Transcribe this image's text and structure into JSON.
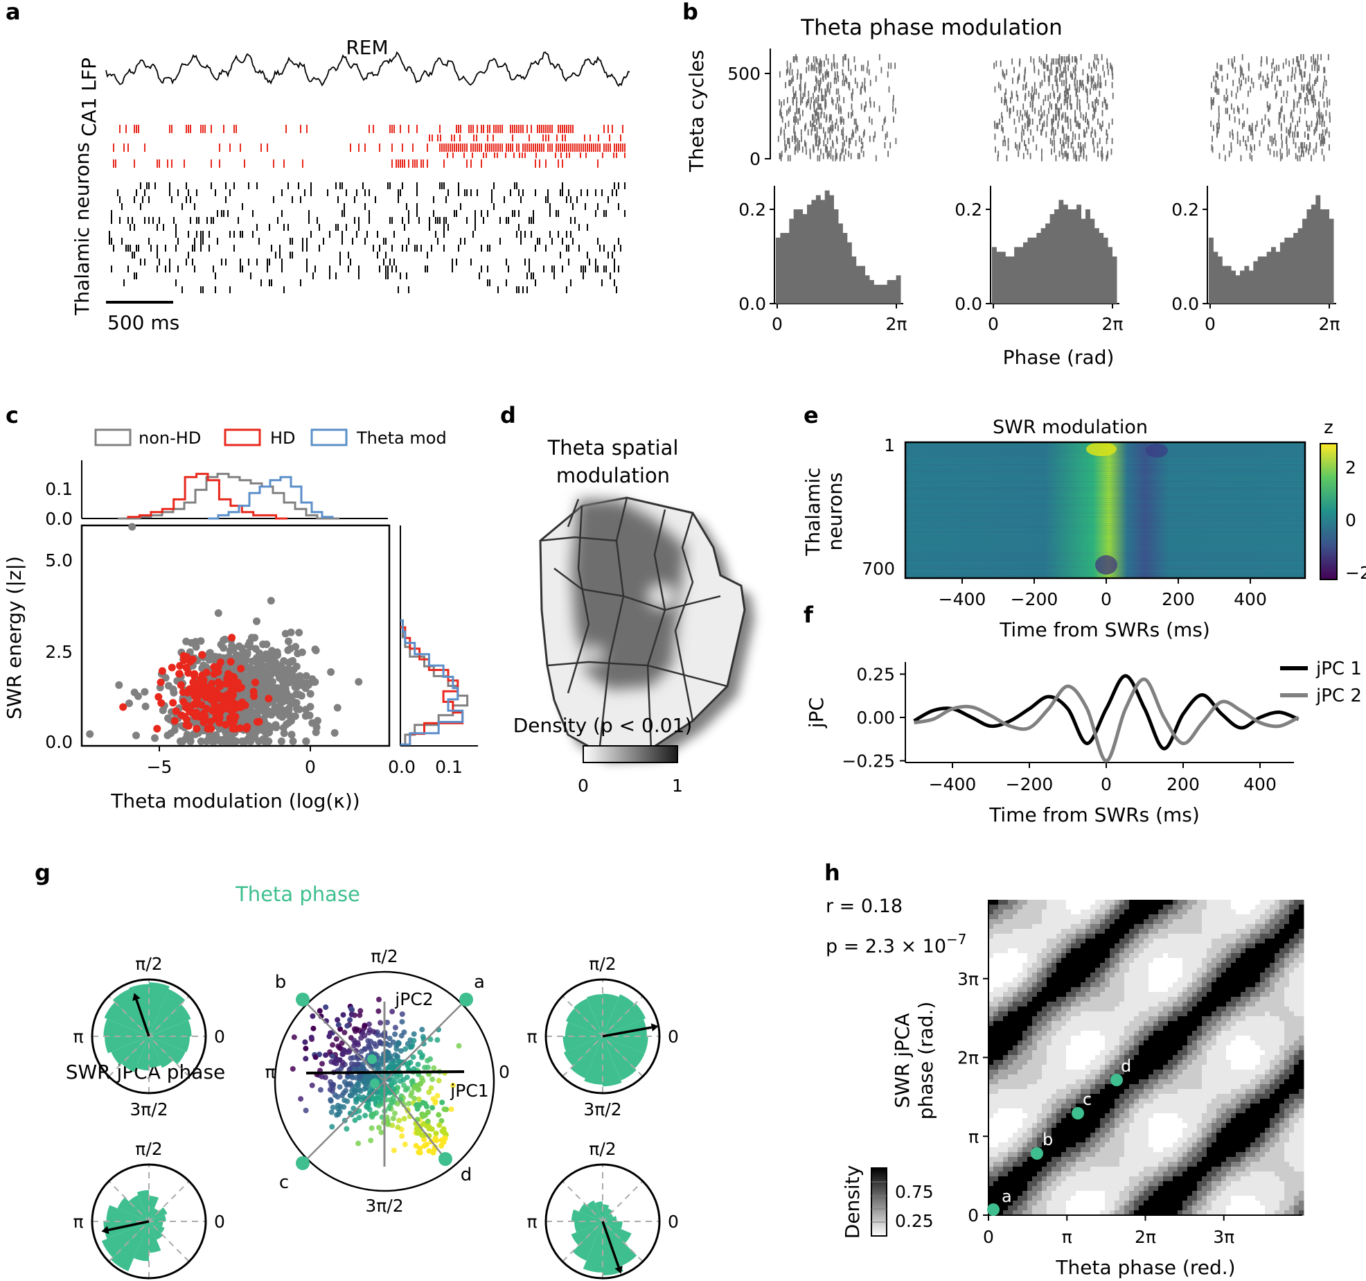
{
  "panel_labels": {
    "a": "a",
    "b": "b",
    "c": "c",
    "d": "d",
    "e": "e",
    "f": "f",
    "g": "g",
    "h": "h"
  },
  "panel_a": {
    "state_label": "REM",
    "lfp_label": "CA1 LFP",
    "neurons_label": "Thalamic neurons",
    "scalebar_label": "500 ms",
    "colors": {
      "lfp": "#000000",
      "hd": "#e8281c",
      "other": "#000000"
    }
  },
  "panel_b": {
    "title": "Theta phase modulation",
    "raster_ylabel": "Theta cycles",
    "raster_yticks": [
      "0",
      "500"
    ],
    "xlabel": "Phase (rad)",
    "xticks": [
      "0",
      "2π"
    ],
    "hist_yticks": [
      "0.0",
      "0.2"
    ],
    "hist_color": "#6e6e6e"
  },
  "panel_c": {
    "legend": [
      "non-HD",
      "HD",
      "Theta mod"
    ],
    "xlabel": "Theta modulation (log(κ))",
    "ylabel": "SWR energy (|z|)",
    "xticks": [
      "−5",
      "0"
    ],
    "yticks": [
      "0.0",
      "2.5",
      "5.0"
    ],
    "top_yticks": [
      "0.0",
      "0.1"
    ],
    "right_xticks": [
      "0.0",
      "0.1"
    ],
    "colors": {
      "nonhd": "#808080",
      "hd": "#e8281c",
      "theta": "#5b8fca"
    }
  },
  "panel_d": {
    "title_line1": "Theta spatial",
    "title_line2": "modulation",
    "colorbar_label": "Density (p < 0.01)",
    "colorbar_ticks": [
      "0",
      "1"
    ]
  },
  "panel_e": {
    "title": "SWR modulation",
    "ylabel_line1": "Thalamic",
    "ylabel_line2": "neurons",
    "yticks": [
      "1",
      "700"
    ],
    "xticks": [
      "−400",
      "−200",
      "0",
      "200",
      "400"
    ],
    "xlabel": "Time from SWRs (ms)",
    "colorbar_label": "z",
    "colorbar_ticks": [
      "2",
      "0",
      "−2"
    ]
  },
  "panel_f": {
    "ylabel": "jPC",
    "yticks": [
      "0.25",
      "0.00",
      "−0.25"
    ],
    "xticks": [
      "−400",
      "−200",
      "0",
      "200",
      "400"
    ],
    "xlabel": "Time from SWRs (ms)",
    "legend": [
      "jPC 1",
      "jPC 2"
    ],
    "colors": {
      "jpc1": "#000000",
      "jpc2": "#808080"
    }
  },
  "chart_data": {
    "type": "line",
    "title": "jPC",
    "x": [
      -500,
      -450,
      -400,
      -350,
      -300,
      -250,
      -200,
      -150,
      -100,
      -50,
      0,
      50,
      100,
      150,
      200,
      250,
      300,
      350,
      400,
      450,
      500
    ],
    "series": [
      {
        "name": "jPC 1",
        "values": [
          -0.02,
          0.04,
          0.05,
          0.0,
          -0.05,
          -0.02,
          0.05,
          0.12,
          0.05,
          -0.15,
          0.05,
          0.24,
          0.05,
          -0.18,
          0.02,
          0.13,
          0.02,
          -0.06,
          0.0,
          0.03,
          -0.01
        ]
      },
      {
        "name": "jPC 2",
        "values": [
          -0.03,
          -0.01,
          0.05,
          0.06,
          0.01,
          -0.05,
          -0.06,
          0.05,
          0.18,
          0.05,
          -0.25,
          0.05,
          0.22,
          0.0,
          -0.15,
          -0.03,
          0.09,
          0.04,
          -0.03,
          -0.05,
          0.0
        ]
      }
    ],
    "xlabel": "Time from SWRs (ms)",
    "ylabel": "jPC",
    "ylim": [
      -0.28,
      0.28
    ]
  },
  "panel_g": {
    "theta_phase_label": "Theta phase",
    "jpca_phase_label": "SWR jPCA phase",
    "angle_labels": {
      "top": "π/2",
      "left": "π",
      "right": "0",
      "bottom": "3π/2"
    },
    "axis_labels": {
      "jpc1": "jPC1",
      "jpc2": "jPC2"
    },
    "point_labels": [
      "a",
      "b",
      "c",
      "d"
    ],
    "accent": "#3fbf8f"
  },
  "panel_h": {
    "r_label": "r = 0.18",
    "p_label_prefix": "p = 2.3 × 10",
    "p_label_exp": "−7",
    "xlabel": "Theta phase (red.)",
    "ylabel_line1": "SWR jPCA",
    "ylabel_line2": "phase (rad.)",
    "xticks": [
      "0",
      "π",
      "2π",
      "3π"
    ],
    "yticks": [
      "0",
      "π",
      "2π",
      "3π"
    ],
    "point_labels": [
      "a",
      "b",
      "c",
      "d"
    ],
    "colorbar_label": "Density",
    "colorbar_ticks": [
      "0.75",
      "0.25"
    ]
  }
}
